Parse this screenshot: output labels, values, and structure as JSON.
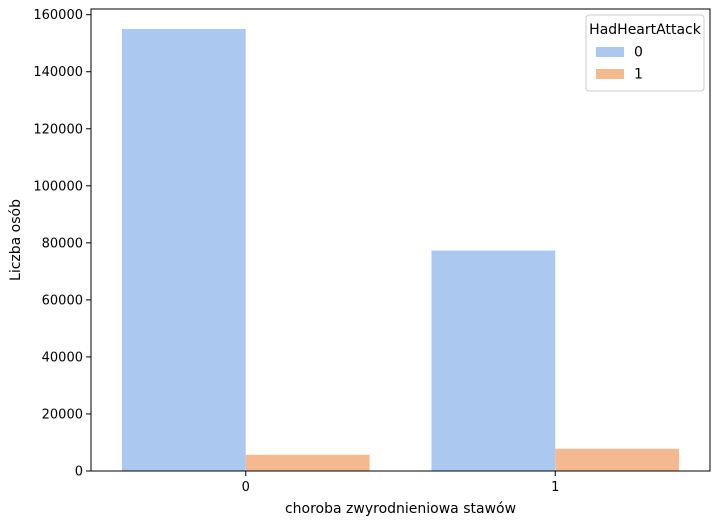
{
  "chart_data": {
    "type": "bar",
    "categories": [
      "0",
      "1"
    ],
    "series": [
      {
        "name": "0",
        "color": "#abc9f0",
        "values": [
          155000,
          77300
        ]
      },
      {
        "name": "1",
        "color": "#f4b98e",
        "values": [
          5700,
          7800
        ]
      }
    ],
    "xlabel": "choroba zwyrodnieniowa stawów",
    "ylabel": "Liczba osób",
    "ylim": [
      0,
      162000
    ],
    "yticks": [
      0,
      20000,
      40000,
      60000,
      80000,
      100000,
      120000,
      140000,
      160000
    ],
    "ytick_labels": [
      "0",
      "20000",
      "40000",
      "60000",
      "80000",
      "100000",
      "120000",
      "140000",
      "160000"
    ],
    "legend": {
      "title": "HadHeartAttack",
      "placement": "top-right"
    },
    "grid": false
  }
}
